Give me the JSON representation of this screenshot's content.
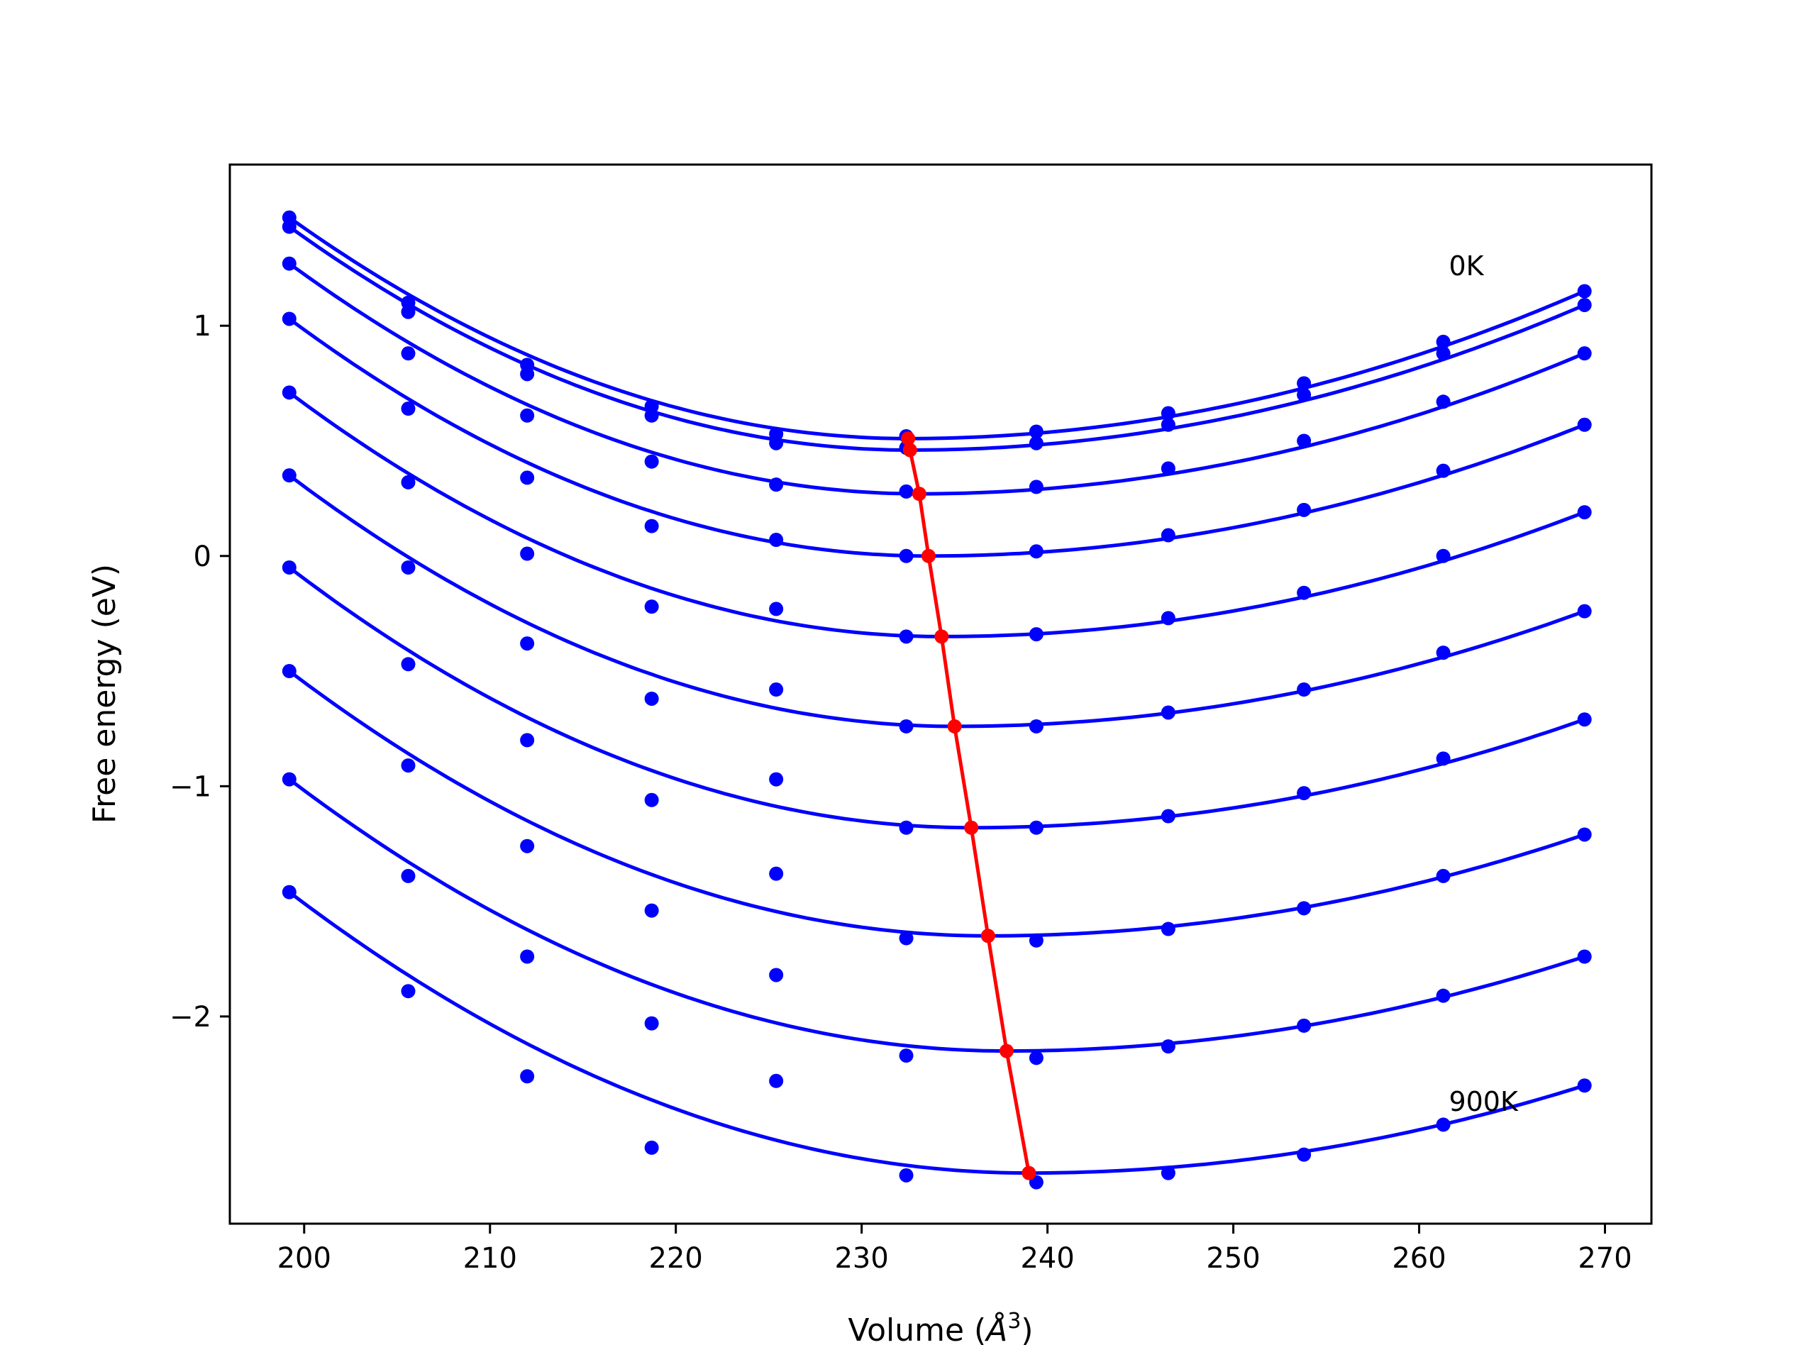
{
  "chart_data": {
    "type": "scatter",
    "title": "",
    "xlabel": "Volume (",
    "xlabel_unit": "Å",
    "xlabel_exp": "3",
    "xlabel_close": ")",
    "ylabel": "Free energy (eV)",
    "xlim": [
      196,
      272.5
    ],
    "ylim": [
      -2.9,
      1.7
    ],
    "xticks": [
      200,
      210,
      220,
      230,
      240,
      250,
      260,
      270
    ],
    "xtick_labels": [
      "200",
      "210",
      "220",
      "230",
      "240",
      "250",
      "260",
      "270"
    ],
    "yticks": [
      1,
      0,
      -1,
      -2
    ],
    "ytick_labels": [
      "1",
      "0",
      "−1",
      "−2"
    ],
    "grid": false,
    "legend": "none",
    "annotations": [
      {
        "text": "0K",
        "x": 261.6,
        "y": 1.22
      },
      {
        "text": "900K",
        "x": 261.6,
        "y": -2.41
      }
    ],
    "colors": {
      "curves": "#0000ff",
      "minimum_line": "#ff0000",
      "frame": "#000000"
    },
    "volumes": [
      199.2,
      205.6,
      212.0,
      218.7,
      225.4,
      232.4,
      239.4,
      246.5,
      253.8,
      261.3,
      268.9
    ],
    "series": [
      {
        "y": [
          1.47,
          1.1,
          0.83,
          0.65,
          0.53,
          0.52,
          0.54,
          0.62,
          0.75,
          0.93,
          1.15
        ],
        "fit_min": [
          232.5,
          0.51
        ]
      },
      {
        "y": [
          1.43,
          1.06,
          0.79,
          0.61,
          0.49,
          0.47,
          0.49,
          0.57,
          0.7,
          0.88,
          1.09
        ],
        "fit_min": [
          232.6,
          0.46
        ]
      },
      {
        "y": [
          1.27,
          0.88,
          0.61,
          0.41,
          0.31,
          0.28,
          0.3,
          0.38,
          0.5,
          0.67,
          0.88
        ],
        "fit_min": [
          233.1,
          0.27
        ]
      },
      {
        "y": [
          1.03,
          0.64,
          0.34,
          0.13,
          0.07,
          0.0,
          0.02,
          0.09,
          0.2,
          0.37,
          0.57
        ],
        "fit_min": [
          233.6,
          0.0
        ]
      },
      {
        "y": [
          0.71,
          0.32,
          0.01,
          -0.22,
          -0.23,
          -0.35,
          -0.34,
          -0.27,
          -0.16,
          0.0,
          0.19
        ],
        "fit_min": [
          234.3,
          -0.35
        ]
      },
      {
        "y": [
          0.35,
          -0.05,
          -0.38,
          -0.62,
          -0.58,
          -0.74,
          -0.74,
          -0.68,
          -0.58,
          -0.42,
          -0.24
        ],
        "fit_min": [
          235.0,
          -0.74
        ]
      },
      {
        "y": [
          -0.05,
          -0.47,
          -0.8,
          -1.06,
          -0.97,
          -1.18,
          -1.18,
          -1.13,
          -1.03,
          -0.88,
          -0.71
        ],
        "fit_min": [
          235.9,
          -1.18
        ]
      },
      {
        "y": [
          -0.5,
          -0.91,
          -1.26,
          -1.54,
          -1.38,
          -1.66,
          -1.67,
          -1.62,
          -1.53,
          -1.39,
          -1.21
        ],
        "fit_min": [
          236.8,
          -1.65
        ]
      },
      {
        "y": [
          -0.97,
          -1.39,
          -1.74,
          -2.03,
          -1.82,
          -2.17,
          -2.18,
          -2.13,
          -2.04,
          -1.91,
          -1.74
        ],
        "fit_min": [
          237.8,
          -2.15
        ]
      },
      {
        "y": [
          -1.46,
          -1.89,
          -2.26,
          -2.57,
          -2.28,
          -2.69,
          -2.72,
          -2.68,
          -2.6,
          -2.47,
          -2.3
        ],
        "fit_min": [
          239.0,
          -2.68
        ]
      }
    ]
  }
}
